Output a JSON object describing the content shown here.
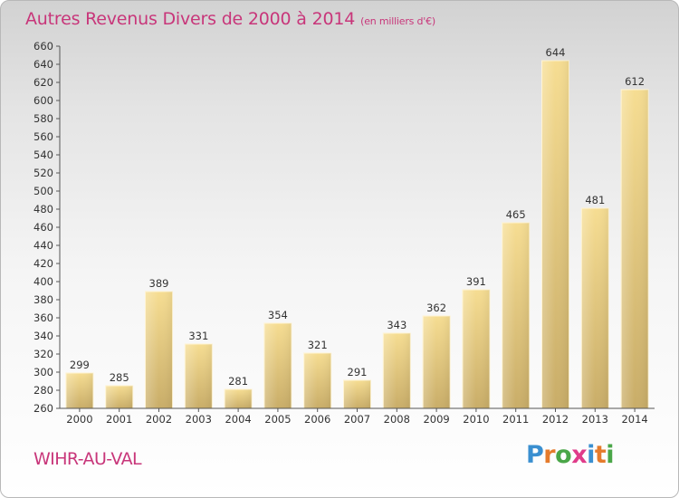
{
  "chart_data": {
    "type": "bar",
    "title": "Autres Revenus Divers de 2000 à 2014",
    "subtitle": "(en milliers d'€)",
    "categories": [
      "2000",
      "2001",
      "2002",
      "2003",
      "2004",
      "2005",
      "2006",
      "2007",
      "2008",
      "2009",
      "2010",
      "2011",
      "2012",
      "2013",
      "2014"
    ],
    "values": [
      299,
      285,
      389,
      331,
      281,
      354,
      321,
      291,
      343,
      362,
      391,
      465,
      644,
      481,
      612
    ],
    "ylim": [
      260,
      660
    ],
    "ytick_step": 20,
    "grid": false,
    "bar_color": "#e3c57a"
  },
  "footer": {
    "place": "WIHR-AU-VAL",
    "logo": {
      "letters": [
        "P",
        "r",
        "o",
        "x",
        "i",
        "t",
        "i"
      ],
      "colors": [
        "#3a8fd0",
        "#e57b2c",
        "#4aa648",
        "#e03c8a",
        "#3a8fd0",
        "#e57b2c",
        "#4aa648"
      ]
    }
  },
  "colors": {
    "accent": "#c8367a"
  }
}
